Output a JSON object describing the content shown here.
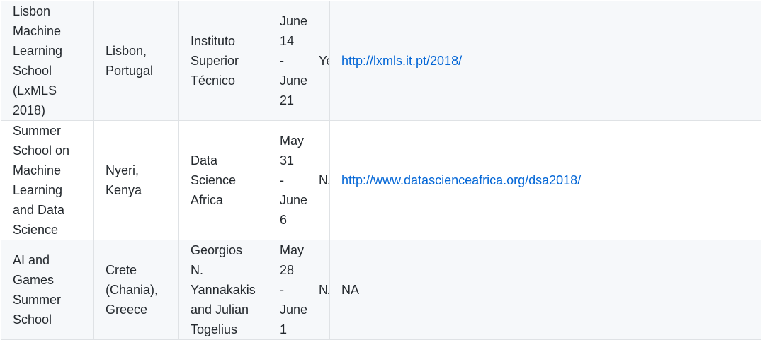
{
  "rows": [
    {
      "name": "Lisbon Machine Learning School (LxMLS 2018)",
      "location": "Lisbon, Portugal",
      "organizer": "Instituto Superior Técnico",
      "dates": "June 14 - June 21",
      "deadline": "Yes",
      "link": "http://lxmls.it.pt/2018/"
    },
    {
      "name": "Summer School on Machine Learning and Data Science",
      "location": "Nyeri, Kenya",
      "organizer": "Data Science Africa",
      "dates": "May 31 - June 6",
      "deadline": "NA",
      "link": "http://www.datascienceafrica.org/dsa2018/"
    },
    {
      "name": "AI and Games Summer School",
      "location": "Crete (Chania), Greece",
      "organizer": "Georgios N. Yannakakis and Julian Togelius",
      "dates": "May 28 - June 1",
      "deadline": "NA",
      "link": "NA"
    }
  ],
  "colors": {
    "link": "#0366d6",
    "stripe": "#f6f8fa",
    "border": "#dfe2e5",
    "text": "#24292e"
  }
}
